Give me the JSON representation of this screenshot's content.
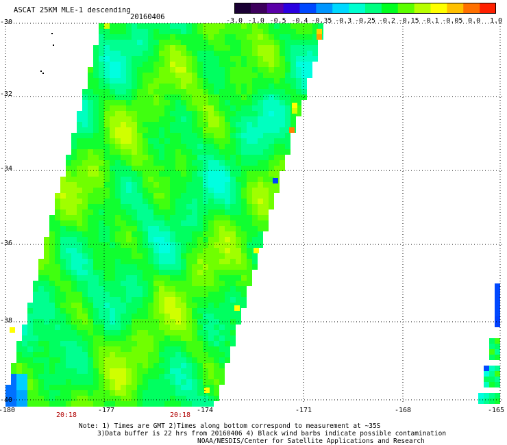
{
  "header": {
    "title": "ASCAT 25KM MLE-1 descending",
    "date": "20160406"
  },
  "colorbar": {
    "ticks": [
      "-3.0",
      "-1.0",
      "-0.5",
      "-0.4",
      "-0.35",
      "-0.3",
      "-0.25",
      "-0.2",
      "-0.15",
      "-0.1",
      "-0.05",
      "0.0",
      "1.0"
    ],
    "colors": [
      "#1a0033",
      "#3d005c",
      "#5a00a8",
      "#2a00e0",
      "#0048ff",
      "#0096ff",
      "#00d8ff",
      "#00ffd0",
      "#00ff80",
      "#00ff20",
      "#5cff00",
      "#b8ff00",
      "#ffff00",
      "#ffc000",
      "#ff7000",
      "#ff2000"
    ]
  },
  "map": {
    "lat_labels": [
      "-30",
      "-32",
      "-34",
      "-36",
      "-38",
      "-40"
    ],
    "lon_labels": [
      "-180",
      "-177",
      "-174",
      "-171",
      "-168",
      "-165"
    ],
    "pass_times": [
      "20:18",
      "20:18"
    ]
  },
  "notes": {
    "line1": "Note: 1) Times are GMT 2)Times along bottom correspond to measurement at ~35S",
    "line2": "3)Data buffer is 22 hrs from 20160406 4) Black wind barbs indicate possible contamination",
    "line3": "NOAA/NESDIS/Center for Satellite Applications and Research"
  }
}
